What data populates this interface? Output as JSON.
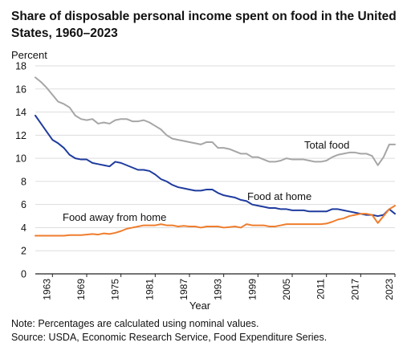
{
  "chart_data": {
    "type": "line",
    "title": "Share of disposable personal income spent on food in the United States, 1960–2023",
    "xlabel": "Year",
    "ylabel": "Percent",
    "xlim": [
      1960,
      2023
    ],
    "ylim": [
      0,
      18
    ],
    "y_ticks": [
      0,
      2,
      4,
      6,
      8,
      10,
      12,
      14,
      16,
      18
    ],
    "x_ticks": [
      "1963",
      "1969",
      "1975",
      "1981",
      "1987",
      "1993",
      "1999",
      "2005",
      "2011",
      "2017",
      "2023"
    ],
    "grid": "horizontal",
    "legend": "inline labels",
    "series": [
      {
        "name": "Total food",
        "color": "#a6a6a6",
        "x": [
          1960,
          1961,
          1962,
          1963,
          1964,
          1965,
          1966,
          1967,
          1968,
          1969,
          1970,
          1971,
          1972,
          1973,
          1974,
          1975,
          1976,
          1977,
          1978,
          1979,
          1980,
          1981,
          1982,
          1983,
          1984,
          1985,
          1986,
          1987,
          1988,
          1989,
          1990,
          1991,
          1992,
          1993,
          1994,
          1995,
          1996,
          1997,
          1998,
          1999,
          2000,
          2001,
          2002,
          2003,
          2004,
          2005,
          2006,
          2007,
          2008,
          2009,
          2010,
          2011,
          2012,
          2013,
          2014,
          2015,
          2016,
          2017,
          2018,
          2019,
          2020,
          2021,
          2022,
          2023
        ],
        "values": [
          17.0,
          16.6,
          16.1,
          15.5,
          14.9,
          14.7,
          14.4,
          13.7,
          13.4,
          13.3,
          13.4,
          13.0,
          13.1,
          13.0,
          13.3,
          13.4,
          13.4,
          13.2,
          13.2,
          13.3,
          13.1,
          12.8,
          12.5,
          12.0,
          11.7,
          11.6,
          11.5,
          11.4,
          11.3,
          11.2,
          11.4,
          11.4,
          10.9,
          10.9,
          10.8,
          10.6,
          10.4,
          10.4,
          10.1,
          10.1,
          9.9,
          9.7,
          9.7,
          9.8,
          10.0,
          9.9,
          9.9,
          9.9,
          9.8,
          9.7,
          9.7,
          9.8,
          10.1,
          10.3,
          10.4,
          10.5,
          10.5,
          10.4,
          10.4,
          10.2,
          9.4,
          10.1,
          11.2,
          11.2
        ]
      },
      {
        "name": "Food at home",
        "color": "#1f3c9e",
        "x": [
          1960,
          1961,
          1962,
          1963,
          1964,
          1965,
          1966,
          1967,
          1968,
          1969,
          1970,
          1971,
          1972,
          1973,
          1974,
          1975,
          1976,
          1977,
          1978,
          1979,
          1980,
          1981,
          1982,
          1983,
          1984,
          1985,
          1986,
          1987,
          1988,
          1989,
          1990,
          1991,
          1992,
          1993,
          1994,
          1995,
          1996,
          1997,
          1998,
          1999,
          2000,
          2001,
          2002,
          2003,
          2004,
          2005,
          2006,
          2007,
          2008,
          2009,
          2010,
          2011,
          2012,
          2013,
          2014,
          2015,
          2016,
          2017,
          2018,
          2019,
          2020,
          2021,
          2022,
          2023
        ],
        "values": [
          13.7,
          13.0,
          12.3,
          11.6,
          11.3,
          10.9,
          10.3,
          10.0,
          9.9,
          9.9,
          9.6,
          9.5,
          9.4,
          9.3,
          9.7,
          9.6,
          9.4,
          9.2,
          9.0,
          9.0,
          8.9,
          8.6,
          8.2,
          8.0,
          7.7,
          7.5,
          7.4,
          7.3,
          7.2,
          7.2,
          7.3,
          7.3,
          7.0,
          6.8,
          6.7,
          6.6,
          6.4,
          6.3,
          6.0,
          5.9,
          5.8,
          5.7,
          5.7,
          5.6,
          5.6,
          5.5,
          5.5,
          5.5,
          5.4,
          5.4,
          5.4,
          5.4,
          5.6,
          5.6,
          5.5,
          5.4,
          5.3,
          5.2,
          5.1,
          5.1,
          5.0,
          5.1,
          5.6,
          5.2
        ]
      },
      {
        "name": "Food away from home",
        "color": "#ef7d2d",
        "x": [
          1960,
          1961,
          1962,
          1963,
          1964,
          1965,
          1966,
          1967,
          1968,
          1969,
          1970,
          1971,
          1972,
          1973,
          1974,
          1975,
          1976,
          1977,
          1978,
          1979,
          1980,
          1981,
          1982,
          1983,
          1984,
          1985,
          1986,
          1987,
          1988,
          1989,
          1990,
          1991,
          1992,
          1993,
          1994,
          1995,
          1996,
          1997,
          1998,
          1999,
          2000,
          2001,
          2002,
          2003,
          2004,
          2005,
          2006,
          2007,
          2008,
          2009,
          2010,
          2011,
          2012,
          2013,
          2014,
          2015,
          2016,
          2017,
          2018,
          2019,
          2020,
          2021,
          2022,
          2023
        ],
        "values": [
          3.3,
          3.3,
          3.3,
          3.3,
          3.3,
          3.3,
          3.35,
          3.35,
          3.35,
          3.4,
          3.45,
          3.4,
          3.5,
          3.45,
          3.55,
          3.7,
          3.9,
          4.0,
          4.1,
          4.2,
          4.2,
          4.2,
          4.3,
          4.2,
          4.2,
          4.1,
          4.15,
          4.1,
          4.1,
          4.0,
          4.1,
          4.1,
          4.1,
          4.0,
          4.05,
          4.1,
          4.0,
          4.3,
          4.2,
          4.2,
          4.2,
          4.1,
          4.1,
          4.2,
          4.3,
          4.3,
          4.3,
          4.3,
          4.3,
          4.3,
          4.3,
          4.35,
          4.5,
          4.7,
          4.8,
          5.0,
          5.1,
          5.2,
          5.2,
          5.1,
          4.4,
          5.0,
          5.6,
          5.9
        ]
      }
    ],
    "annotations": [
      "Total food",
      "Food at home",
      "Food away from home"
    ]
  },
  "notes": {
    "note": "Note: Percentages are calculated using nominal values.",
    "source": "Source: USDA, Economic Research Service, Food Expenditure Series."
  }
}
